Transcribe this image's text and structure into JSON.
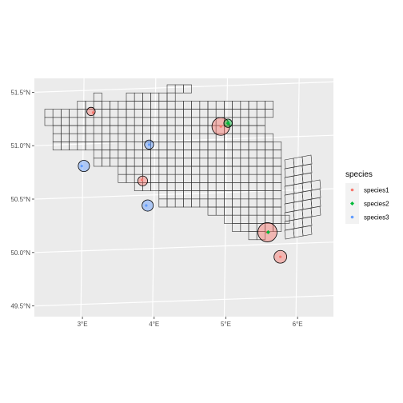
{
  "chart_data": {
    "type": "map",
    "x_ticks": [
      {
        "value": 3,
        "label": "3°E"
      },
      {
        "value": 4,
        "label": "4°E"
      },
      {
        "value": 5,
        "label": "5°E"
      },
      {
        "value": 6,
        "label": "6°E"
      }
    ],
    "y_ticks": [
      {
        "value": 49.5,
        "label": "49.5°N"
      },
      {
        "value": 50.0,
        "label": "50.0°N"
      },
      {
        "value": 50.5,
        "label": "50.5°N"
      },
      {
        "value": 51.0,
        "label": "51.0°N"
      },
      {
        "value": 51.5,
        "label": "51.5°N"
      }
    ],
    "xlim": [
      2.33,
      6.5
    ],
    "ylim": [
      49.4,
      51.63
    ],
    "grid_fill": "#ebebeb",
    "cell_fill": "#aaaaaa",
    "cell_stroke": "#333333",
    "legend": {
      "title": "species",
      "position": "right",
      "entries": [
        {
          "label": "species1",
          "color": "#F8766D"
        },
        {
          "label": "species2",
          "color": "#00BA38"
        },
        {
          "label": "species3",
          "color": "#619CFF"
        }
      ]
    },
    "observations": [
      {
        "species": "species1",
        "lon": 3.15,
        "lat": 51.31
      },
      {
        "species": "species1",
        "lon": 3.83,
        "lat": 50.68
      },
      {
        "species": "species1",
        "lon": 4.93,
        "lat": 51.18
      },
      {
        "species": "species1",
        "lon": 5.57,
        "lat": 50.19
      },
      {
        "species": "species1",
        "lon": 5.76,
        "lat": 49.96
      },
      {
        "species": "species2",
        "lon": 5.03,
        "lat": 51.21
      },
      {
        "species": "species2",
        "lon": 5.59,
        "lat": 50.19
      },
      {
        "species": "species3",
        "lon": 2.99,
        "lat": 50.81
      },
      {
        "species": "species3",
        "lon": 3.93,
        "lat": 51.01
      },
      {
        "species": "species3",
        "lon": 3.89,
        "lat": 50.44
      }
    ],
    "occupied_cells": [
      {
        "species": "species1",
        "lon": 3.12,
        "lat": 51.32,
        "size": 0.25
      },
      {
        "species": "species3",
        "lon": 3.02,
        "lat": 50.81,
        "size": 0.45
      },
      {
        "species": "species3",
        "lon": 3.93,
        "lat": 51.01,
        "size": 0.3
      },
      {
        "species": "species1",
        "lon": 3.84,
        "lat": 50.67,
        "size": 0.35
      },
      {
        "species": "species3",
        "lon": 3.91,
        "lat": 50.44,
        "size": 0.45
      },
      {
        "species": "species1",
        "lon": 4.93,
        "lat": 51.18,
        "size": 0.9
      },
      {
        "species": "species2",
        "lon": 5.03,
        "lat": 51.21,
        "size": 0.25
      },
      {
        "species": "species1",
        "lon": 5.58,
        "lat": 50.19,
        "size": 1.0
      },
      {
        "species": "species1",
        "lon": 5.76,
        "lat": 49.96,
        "size": 0.55
      }
    ]
  }
}
